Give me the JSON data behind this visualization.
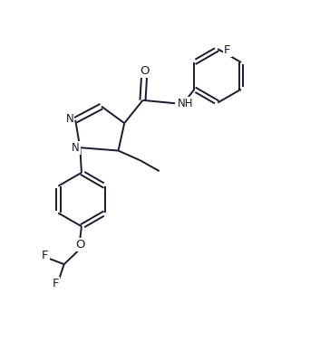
{
  "bg_color": "#ffffff",
  "line_color": "#1a1a2e",
  "figsize": [
    3.42,
    3.77
  ],
  "dpi": 100,
  "bond_lw": 1.4,
  "font_size": 8.5,
  "xlim": [
    0,
    9
  ],
  "ylim": [
    -0.5,
    10.5
  ]
}
